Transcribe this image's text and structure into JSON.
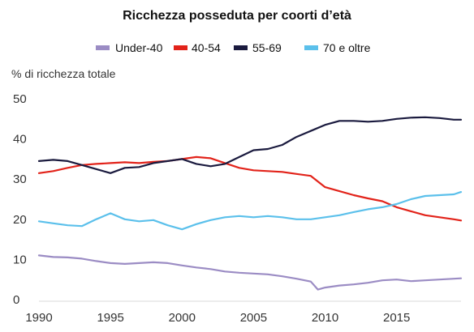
{
  "chart_data": {
    "type": "line",
    "title": "Ricchezza posseduta per coorti d’età",
    "ylabel": "% di ricchezza totale",
    "xlabel": "",
    "xlim": [
      1990,
      2019.5
    ],
    "ylim": [
      0,
      50
    ],
    "x_ticks": [
      "1990",
      "1995",
      "2000",
      "2005",
      "2010",
      "2015"
    ],
    "y_ticks": [
      "0",
      "10",
      "20",
      "30",
      "40",
      "50"
    ],
    "legend_position": "top",
    "grid": false,
    "series": [
      {
        "name": "Under-40",
        "color": "#9b8cc4",
        "points": [
          [
            1990,
            11.0
          ],
          [
            1991,
            10.6
          ],
          [
            1992,
            10.5
          ],
          [
            1993,
            10.2
          ],
          [
            1994,
            9.6
          ],
          [
            1995,
            9.1
          ],
          [
            1996,
            8.9
          ],
          [
            1997,
            9.1
          ],
          [
            1998,
            9.3
          ],
          [
            1999,
            9.1
          ],
          [
            2000,
            8.5
          ],
          [
            2001,
            8.0
          ],
          [
            2002,
            7.6
          ],
          [
            2003,
            7.0
          ],
          [
            2004,
            6.7
          ],
          [
            2005,
            6.5
          ],
          [
            2006,
            6.3
          ],
          [
            2007,
            5.8
          ],
          [
            2008,
            5.2
          ],
          [
            2009,
            4.5
          ],
          [
            2009.5,
            2.5
          ],
          [
            2010,
            3.0
          ],
          [
            2011,
            3.5
          ],
          [
            2012,
            3.8
          ],
          [
            2013,
            4.2
          ],
          [
            2014,
            4.8
          ],
          [
            2015,
            5.0
          ],
          [
            2016,
            4.6
          ],
          [
            2017,
            4.8
          ],
          [
            2018,
            5.0
          ],
          [
            2019,
            5.2
          ],
          [
            2019.5,
            5.3
          ]
        ]
      },
      {
        "name": "40-54",
        "color": "#e2231a",
        "points": [
          [
            1990,
            31.5
          ],
          [
            1991,
            32.0
          ],
          [
            1992,
            32.8
          ],
          [
            1993,
            33.5
          ],
          [
            1994,
            33.8
          ],
          [
            1995,
            34.0
          ],
          [
            1996,
            34.2
          ],
          [
            1997,
            34.0
          ],
          [
            1998,
            34.3
          ],
          [
            1999,
            34.5
          ],
          [
            2000,
            35.0
          ],
          [
            2001,
            35.5
          ],
          [
            2002,
            35.2
          ],
          [
            2003,
            34.0
          ],
          [
            2004,
            32.8
          ],
          [
            2005,
            32.2
          ],
          [
            2006,
            32.0
          ],
          [
            2007,
            31.8
          ],
          [
            2008,
            31.3
          ],
          [
            2009,
            30.8
          ],
          [
            2010,
            28.0
          ],
          [
            2011,
            27.0
          ],
          [
            2012,
            26.0
          ],
          [
            2013,
            25.2
          ],
          [
            2014,
            24.5
          ],
          [
            2015,
            23.0
          ],
          [
            2016,
            22.0
          ],
          [
            2017,
            21.0
          ],
          [
            2018,
            20.5
          ],
          [
            2019,
            20.0
          ],
          [
            2019.5,
            19.7
          ]
        ]
      },
      {
        "name": "55-69",
        "color": "#1a1a3e",
        "points": [
          [
            1990,
            34.5
          ],
          [
            1991,
            34.8
          ],
          [
            1992,
            34.5
          ],
          [
            1993,
            33.5
          ],
          [
            1994,
            32.5
          ],
          [
            1995,
            31.5
          ],
          [
            1996,
            32.8
          ],
          [
            1997,
            33.0
          ],
          [
            1998,
            34.0
          ],
          [
            1999,
            34.5
          ],
          [
            2000,
            35.0
          ],
          [
            2001,
            33.8
          ],
          [
            2002,
            33.2
          ],
          [
            2003,
            33.8
          ],
          [
            2004,
            35.5
          ],
          [
            2005,
            37.2
          ],
          [
            2006,
            37.5
          ],
          [
            2007,
            38.5
          ],
          [
            2008,
            40.5
          ],
          [
            2009,
            42.0
          ],
          [
            2010,
            43.5
          ],
          [
            2011,
            44.5
          ],
          [
            2012,
            44.5
          ],
          [
            2013,
            44.3
          ],
          [
            2014,
            44.5
          ],
          [
            2015,
            45.0
          ],
          [
            2016,
            45.3
          ],
          [
            2017,
            45.4
          ],
          [
            2018,
            45.2
          ],
          [
            2019,
            44.8
          ],
          [
            2019.5,
            44.8
          ]
        ]
      },
      {
        "name": "70 e oltre",
        "color": "#5bc0eb",
        "points": [
          [
            1990,
            19.5
          ],
          [
            1991,
            19.0
          ],
          [
            1992,
            18.5
          ],
          [
            1993,
            18.3
          ],
          [
            1994,
            20.0
          ],
          [
            1995,
            21.5
          ],
          [
            1996,
            20.0
          ],
          [
            1997,
            19.5
          ],
          [
            1998,
            19.8
          ],
          [
            1999,
            18.5
          ],
          [
            2000,
            17.5
          ],
          [
            2001,
            18.8
          ],
          [
            2002,
            19.8
          ],
          [
            2003,
            20.5
          ],
          [
            2004,
            20.8
          ],
          [
            2005,
            20.5
          ],
          [
            2006,
            20.8
          ],
          [
            2007,
            20.5
          ],
          [
            2008,
            20.0
          ],
          [
            2009,
            20.0
          ],
          [
            2010,
            20.5
          ],
          [
            2011,
            21.0
          ],
          [
            2012,
            21.8
          ],
          [
            2013,
            22.5
          ],
          [
            2014,
            23.0
          ],
          [
            2015,
            23.8
          ],
          [
            2016,
            25.0
          ],
          [
            2017,
            25.8
          ],
          [
            2018,
            26.0
          ],
          [
            2019,
            26.2
          ],
          [
            2019.5,
            26.8
          ]
        ]
      }
    ]
  }
}
